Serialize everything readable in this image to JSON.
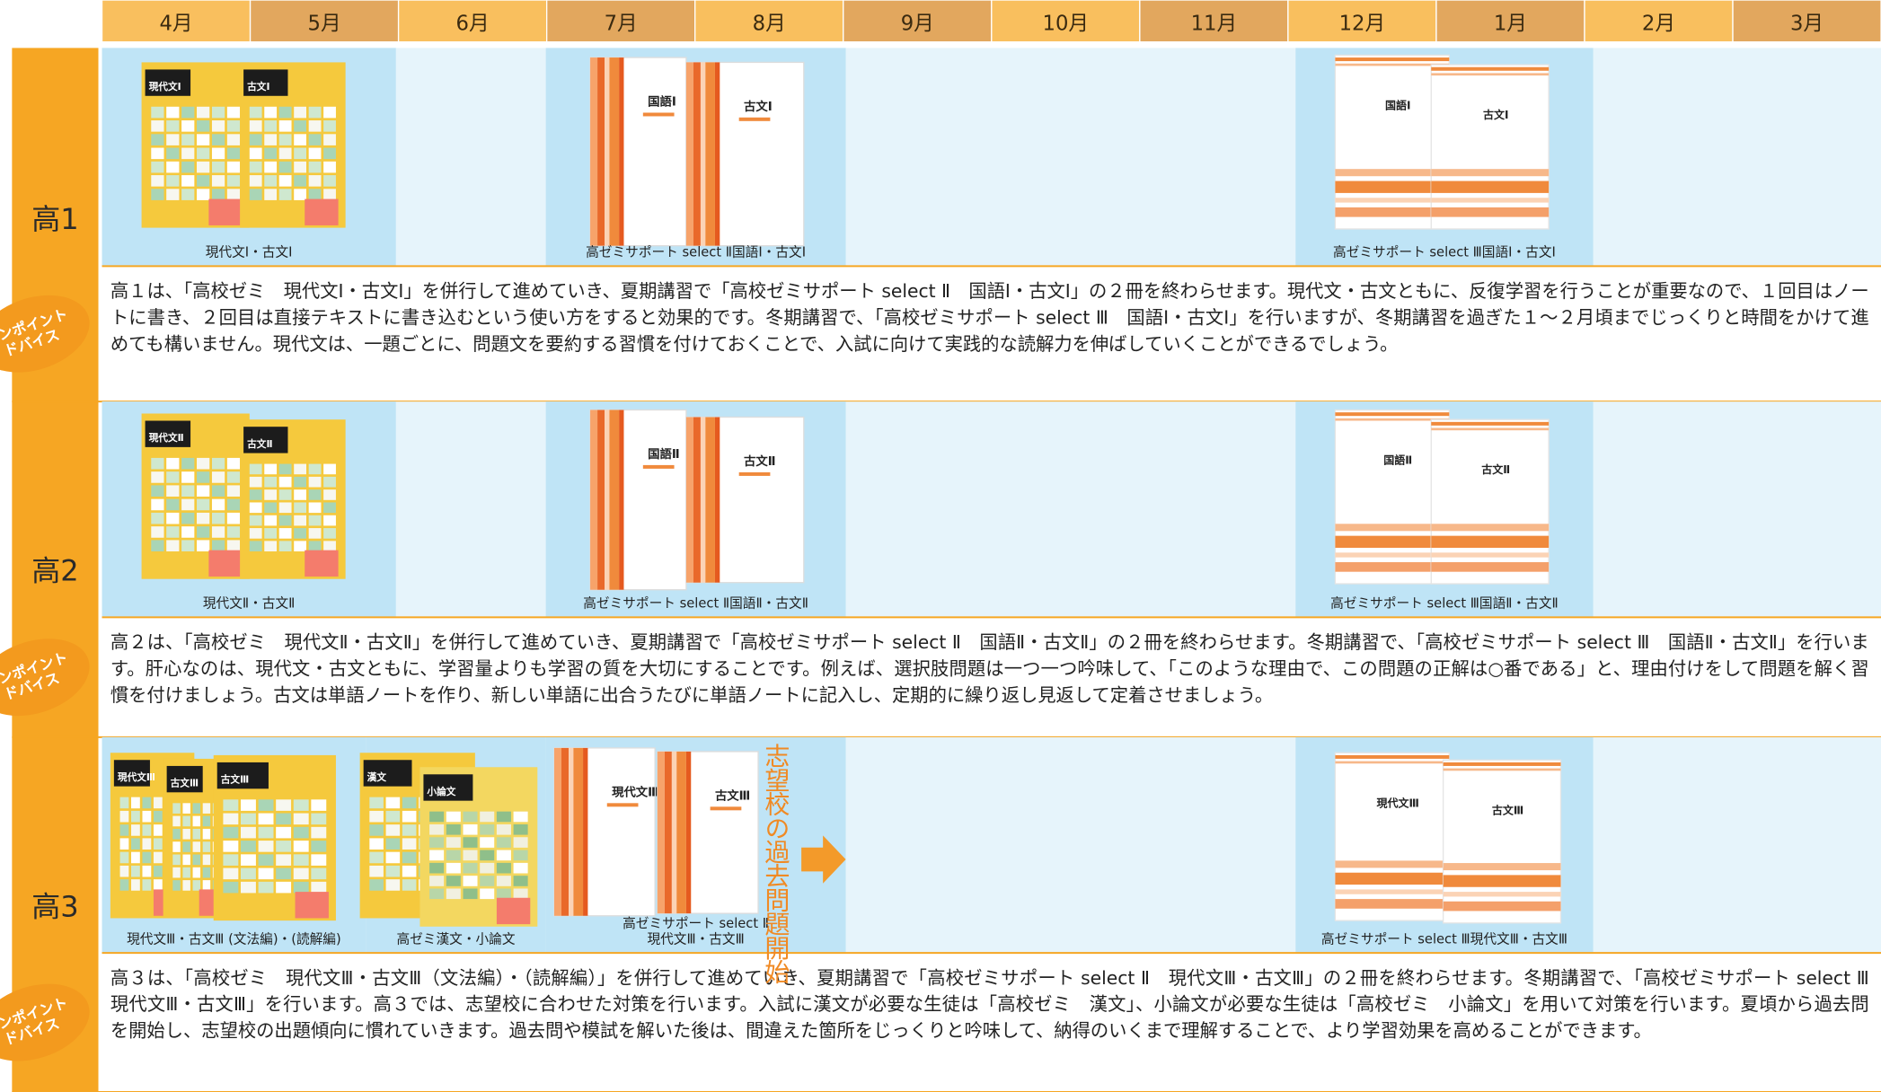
{
  "months": [
    "4月",
    "5月",
    "6月",
    "7月",
    "8月",
    "9月",
    "10月",
    "11月",
    "12月",
    "1月",
    "2月",
    "3月"
  ],
  "badge": [
    "ンポイント",
    "ドバイス"
  ],
  "grades": [
    {
      "label": "高1",
      "sets": [
        {
          "covers": [
            "現代文Ⅰ",
            "古文Ⅰ"
          ],
          "caption": [
            "現代文Ⅰ・古文Ⅰ"
          ]
        },
        {
          "covers": [
            "国語Ⅰ",
            "古文Ⅰ"
          ],
          "caption": [
            "高ゼミサポート select Ⅱ国語Ⅰ・古文Ⅰ"
          ]
        },
        {
          "covers": [
            "国語Ⅰ",
            "古文Ⅰ"
          ],
          "caption": [
            "高ゼミサポート select Ⅲ国語Ⅰ・古文Ⅰ"
          ]
        }
      ],
      "advice": "高１は、「高校ゼミ　現代文Ⅰ・古文Ⅰ」を併行して進めていき、夏期講習で「高校ゼミサポート select Ⅱ　国語Ⅰ・古文Ⅰ」の２冊を終わらせます。現代文・古文ともに、反復学習を行うことが重要なので、１回目はノートに書き、２回目は直接テキストに書き込むという使い方をすると効果的です。冬期講習で、「高校ゼミサポート select Ⅲ　国語Ⅰ・古文Ⅰ」を行いますが、冬期講習を過ぎた１～２月頃までじっくりと時間をかけて進めても構いません。現代文は、一題ごとに、問題文を要約する習慣を付けておくことで、入試に向けて実践的な読解力を伸ばしていくことができるでしょう。"
    },
    {
      "label": "高2",
      "sets": [
        {
          "covers": [
            "現代文Ⅱ",
            "古文Ⅱ"
          ],
          "caption": [
            "現代文Ⅱ・古文Ⅱ"
          ]
        },
        {
          "covers": [
            "国語Ⅱ",
            "古文Ⅱ"
          ],
          "caption": [
            "高ゼミサポート select Ⅱ国語Ⅱ・古文Ⅱ"
          ]
        },
        {
          "covers": [
            "国語Ⅱ",
            "古文Ⅱ"
          ],
          "caption": [
            "高ゼミサポート select Ⅲ国語Ⅱ・古文Ⅱ"
          ]
        }
      ],
      "advice": "高２は、「高校ゼミ　現代文Ⅱ・古文Ⅱ」を併行して進めていき、夏期講習で「高校ゼミサポート select Ⅱ　国語Ⅱ・古文Ⅱ」の２冊を終わらせます。冬期講習で、「高校ゼミサポート select Ⅲ　国語Ⅱ・古文Ⅱ」を行います。肝心なのは、現代文・古文ともに、学習量よりも学習の質を大切にすることです。例えば、選択肢問題は一つ一つ吟味して、「このような理由で、この問題の正解は○番である」と、理由付けをして問題を解く習慣を付けましょう。古文は単語ノートを作り、新しい単語に出合うたびに単語ノートに記入し、定期的に繰り返し見返して定着させましょう。"
    },
    {
      "label": "高3",
      "sets": [
        {
          "covers": [
            "現代文Ⅲ",
            "古文Ⅲ",
            "古文Ⅲ"
          ],
          "caption": [
            "現代文Ⅲ・古文Ⅲ (文法編)・(読解編)"
          ]
        },
        {
          "covers": [
            "漢文",
            "小論文"
          ],
          "caption": [
            "高ゼミ漢文・小論文"
          ]
        },
        {
          "covers": [
            "現代文Ⅲ",
            "古文Ⅲ"
          ],
          "caption": [
            "高ゼミサポート select Ⅱ",
            "現代文Ⅲ・古文Ⅲ"
          ]
        },
        {
          "covers": [
            "現代文Ⅲ",
            "古文Ⅲ"
          ],
          "caption": [
            "高ゼミサポート select Ⅲ現代文Ⅲ・古文Ⅲ"
          ]
        }
      ],
      "advice": "高３は、「高校ゼミ　現代文Ⅲ・古文Ⅲ（文法編）・（読解編）」を併行して進めていき、夏期講習で「高校ゼミサポート select Ⅱ　現代文Ⅲ・古文Ⅲ」の２冊を終わらせます。冬期講習で、「高校ゼミサポート select Ⅲ　現代文Ⅲ・古文Ⅲ」を行います。高３では、志望校に合わせた対策を行います。入試に漢文が必要な生徒は「高校ゼミ　漢文」、小論文が必要な生徒は「高校ゼミ　小論文」を用いて対策を行います。夏頃から過去問を開始し、志望校の出題傾向に慣れていきます。過去問や模試を解いた後は、間違えた箇所をじっくりと吟味して、納得のいくまで理解することで、より学習効果を高めることができます。",
      "note": "志望校の過去問題開始"
    }
  ]
}
